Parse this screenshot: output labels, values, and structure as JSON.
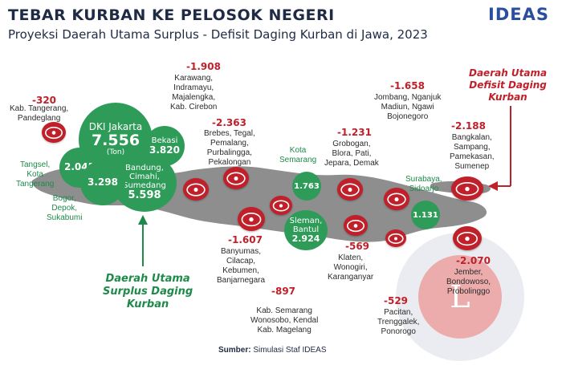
{
  "header": {
    "title": "TEBAR KURBAN KE PELOSOK NEGERI",
    "subtitle": "Proyeksi Daerah Utama Surplus - Defisit Daging Kurban di Jawa, 2023",
    "logo": "IDEAS"
  },
  "legend": {
    "surplus_line1": "Daerah Utama",
    "surplus_line2": "Surplus Daging",
    "surplus_line3": "Kurban",
    "deficit_line1": "Daerah Utama",
    "deficit_line2": "Defisit Daging",
    "deficit_line3": "Kurban"
  },
  "surplus": {
    "dki": {
      "name": "DKI Jakarta",
      "value": "7.556",
      "unit": "(Ton)"
    },
    "bekasi": {
      "name": "Bekasi",
      "value": "3.820"
    },
    "bandung": {
      "name1": "Bandung,",
      "name2": "Cimahi,",
      "name3": "Sumedang",
      "value": "5.598"
    },
    "tangsel": {
      "value": "2.045",
      "l1": "Tangsel,",
      "l2": "Kota",
      "l3": "Tangerang"
    },
    "bogor": {
      "value": "3.298",
      "l1": "Bogor,",
      "l2": "Depok,",
      "l3": "Sukabumi"
    },
    "kota_semarang": {
      "value": "1.763",
      "l1": "Kota",
      "l2": "Semarang"
    },
    "sleman": {
      "l1": "Sleman,",
      "l2": "Bantul",
      "value": "2.924"
    },
    "surabaya": {
      "value": "1.131",
      "l1": "Surabaya,",
      "l2": "Sidoarjo"
    }
  },
  "deficit": {
    "tangerang": {
      "value": "-320",
      "l1": "Kab. Tangerang,",
      "l2": "Pandeglang"
    },
    "karawang": {
      "value": "-1.908",
      "l1": "Karawang,",
      "l2": "Indramayu,",
      "l3": "Majalengka,",
      "l4": "Kab. Cirebon"
    },
    "brebes": {
      "value": "-2.363",
      "l1": "Brebes, Tegal,",
      "l2": "Pemalang,",
      "l3": "Purbalingga,",
      "l4": "Pekalongan"
    },
    "banyumas": {
      "value": "-1.607",
      "l1": "Banyumas,",
      "l2": "Cilacap,",
      "l3": "Kebumen,",
      "l4": "Banjarnegara"
    },
    "kab_semarang": {
      "value": "-897",
      "l1": "Kab. Semarang",
      "l2": "Wonosobo, Kendal",
      "l3": "Kab. Magelang"
    },
    "grobogan": {
      "value": "-1.231",
      "l1": "Grobogan,",
      "l2": "Blora, Pati,",
      "l3": "Jepara, Demak"
    },
    "klaten": {
      "value": "-569",
      "l1": "Klaten,",
      "l2": "Wonogiri,",
      "l3": "Karanganyar"
    },
    "jombang": {
      "value": "-1.658",
      "l1": "Jombang, Nganjuk",
      "l2": "Madiun, Ngawi",
      "l3": "Bojonegoro"
    },
    "pacitan": {
      "value": "-529",
      "l1": "Pacitan,",
      "l2": "Trenggalek,",
      "l3": "Ponorogo"
    },
    "bangkalan": {
      "value": "-2.188",
      "l1": "Bangkalan,",
      "l2": "Sampang,",
      "l3": "Pamekasan,",
      "l4": "Sumenep"
    },
    "jember": {
      "value": "-2.070",
      "l1": "Jember,",
      "l2": "Bondowoso,",
      "l3": "Probolinggo"
    }
  },
  "source": {
    "label": "Sumber:",
    "text": "Simulasi Staf IDEAS"
  },
  "colors": {
    "green": "#1e8a4a",
    "red": "#c0202a",
    "navy": "#1f2a44",
    "map_gray": "#8e8e8e"
  }
}
